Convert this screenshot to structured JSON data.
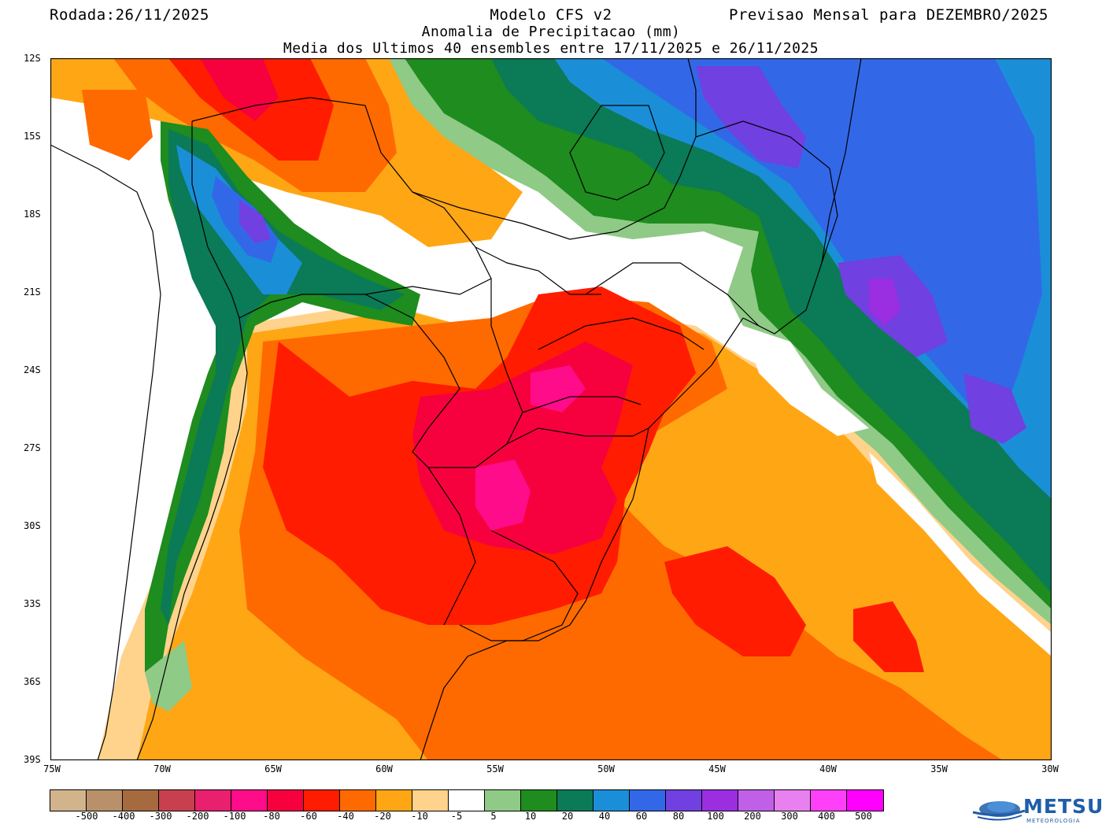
{
  "header": {
    "run_date": "Rodada:26/11/2025",
    "model": "Modelo CFS v2",
    "forecast": "Previsao Mensal para DEZEMBRO/2025",
    "variable": "Anomalia de Precipitacao (mm)",
    "ensemble": "Media dos Ultimos 40 ensembles entre 17/11/2025 e 26/11/2025"
  },
  "axes": {
    "lat_labels": [
      "12S",
      "15S",
      "18S",
      "21S",
      "24S",
      "27S",
      "30S",
      "33S",
      "36S",
      "39S"
    ],
    "lon_labels": [
      "75W",
      "70W",
      "65W",
      "60W",
      "55W",
      "50W",
      "45W",
      "40W",
      "35W",
      "30W"
    ]
  },
  "legend": {
    "colors": [
      "#d2b48c",
      "#b8906a",
      "#a56b3f",
      "#c8404f",
      "#e8206e",
      "#ff0c8a",
      "#f7003e",
      "#ff1c00",
      "#ff6a00",
      "#ffa615",
      "#ffd38c",
      "#ffffff",
      "#8fca86",
      "#1e8c1e",
      "#0b7a56",
      "#1a8fd8",
      "#3268e8",
      "#7040e0",
      "#9a2ee0",
      "#c060e8",
      "#e880f0",
      "#ff40f8",
      "#ff00ff"
    ],
    "labels": [
      "-500",
      "-400",
      "-300",
      "-200",
      "-100",
      "-80",
      "-60",
      "-40",
      "-20",
      "-10",
      "-5",
      "5",
      "10",
      "20",
      "40",
      "60",
      "80",
      "100",
      "200",
      "300",
      "400",
      "500"
    ]
  },
  "logo": {
    "name": "METSUL",
    "subtitle": "METEOROLOGIA"
  }
}
